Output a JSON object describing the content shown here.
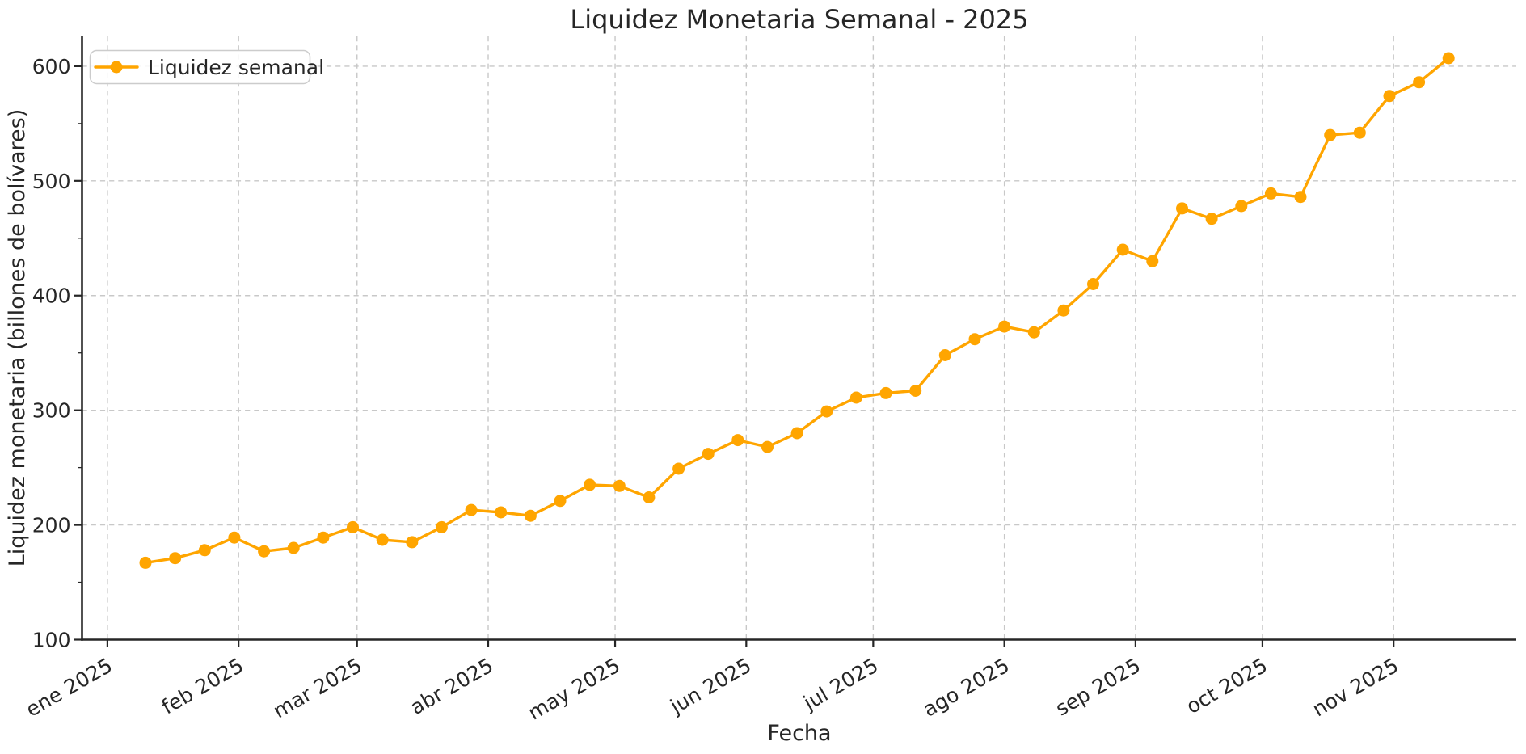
{
  "figure": {
    "background": "#ffffff",
    "text_color": "#262626",
    "grid_color": "#c8c8c8",
    "spine_color": "#262626"
  },
  "chart_data": {
    "type": "line",
    "title": "Liquidez Monetaria Semanal - 2025",
    "xlabel": "Fecha",
    "ylabel": "Liquidez monetaria (billones de bolívares)",
    "legend": {
      "label": "Liquidez semanal",
      "position": "upper-left"
    },
    "grid": true,
    "line_color": "#FFA500",
    "marker": "circle",
    "ylim": [
      100,
      626
    ],
    "yticks": [
      100,
      200,
      300,
      400,
      500,
      600
    ],
    "y_minor_ticks": [
      150,
      250,
      350,
      450,
      550
    ],
    "xlim": [
      "2024-12-26",
      "2025-11-30"
    ],
    "x_ticks": [
      {
        "date": "2025-01-01",
        "label": "ene 2025"
      },
      {
        "date": "2025-02-01",
        "label": "feb 2025"
      },
      {
        "date": "2025-03-01",
        "label": "mar 2025"
      },
      {
        "date": "2025-04-01",
        "label": "abr 2025"
      },
      {
        "date": "2025-05-01",
        "label": "may 2025"
      },
      {
        "date": "2025-06-01",
        "label": "jun 2025"
      },
      {
        "date": "2025-07-01",
        "label": "jul 2025"
      },
      {
        "date": "2025-08-01",
        "label": "ago 2025"
      },
      {
        "date": "2025-09-01",
        "label": "sep 2025"
      },
      {
        "date": "2025-10-01",
        "label": "oct 2025"
      },
      {
        "date": "2025-11-01",
        "label": "nov 2025"
      }
    ],
    "x": [
      "2025-01-10",
      "2025-01-17",
      "2025-01-24",
      "2025-01-31",
      "2025-02-07",
      "2025-02-14",
      "2025-02-21",
      "2025-02-28",
      "2025-03-07",
      "2025-03-14",
      "2025-03-21",
      "2025-03-28",
      "2025-04-04",
      "2025-04-11",
      "2025-04-18",
      "2025-04-25",
      "2025-05-02",
      "2025-05-09",
      "2025-05-16",
      "2025-05-23",
      "2025-05-30",
      "2025-06-06",
      "2025-06-13",
      "2025-06-20",
      "2025-06-27",
      "2025-07-04",
      "2025-07-11",
      "2025-07-18",
      "2025-07-25",
      "2025-08-01",
      "2025-08-08",
      "2025-08-15",
      "2025-08-22",
      "2025-08-29",
      "2025-09-05",
      "2025-09-12",
      "2025-09-19",
      "2025-09-26",
      "2025-10-03",
      "2025-10-10",
      "2025-10-17",
      "2025-10-24",
      "2025-10-31",
      "2025-11-07",
      "2025-11-14"
    ],
    "series": [
      {
        "name": "Liquidez semanal",
        "color": "#FFA500",
        "values": [
          167,
          171,
          178,
          189,
          177,
          180,
          189,
          198,
          187,
          185,
          198,
          213,
          211,
          208,
          221,
          235,
          234,
          224,
          249,
          262,
          274,
          268,
          280,
          299,
          311,
          315,
          317,
          348,
          362,
          373,
          368,
          387,
          410,
          440,
          430,
          476,
          467,
          478,
          489,
          486,
          540,
          542,
          574,
          586,
          607
        ]
      }
    ]
  }
}
